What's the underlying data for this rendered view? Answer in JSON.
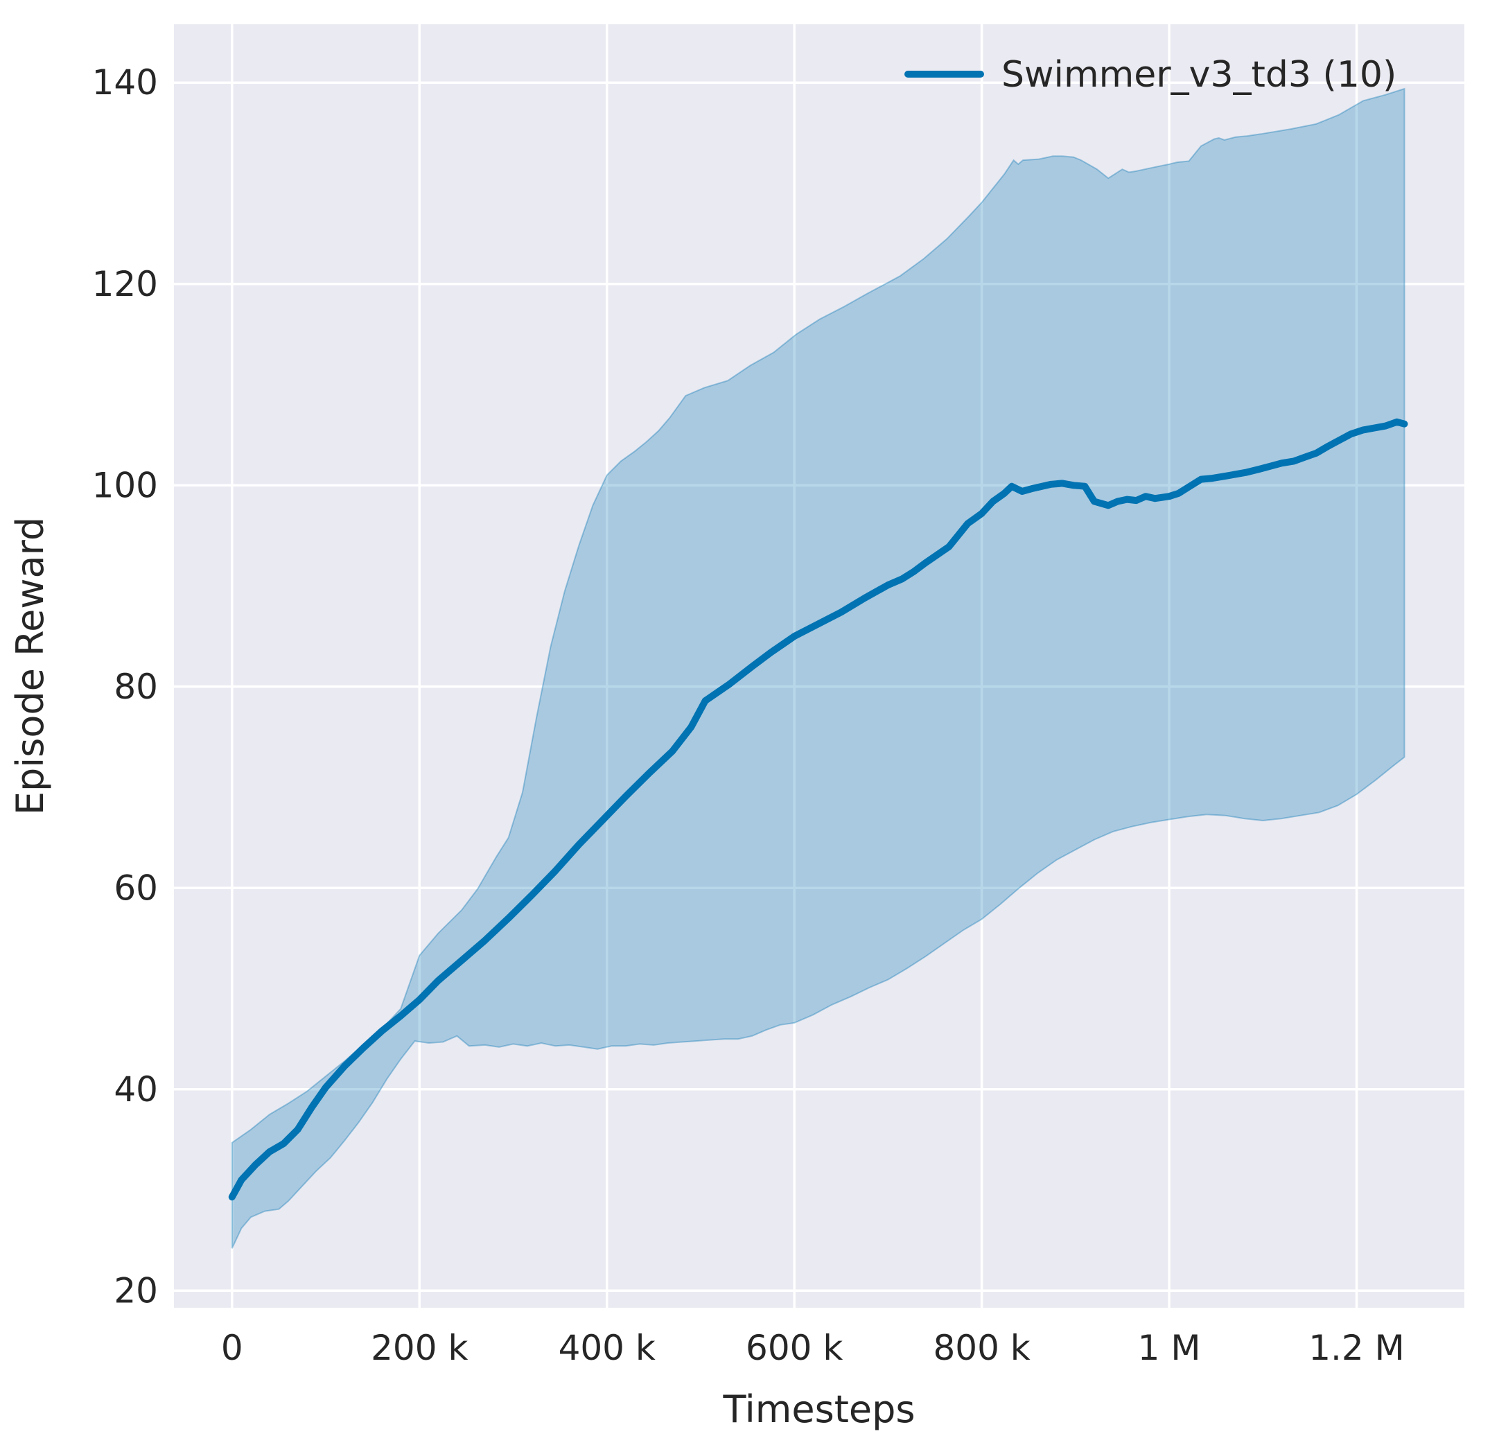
{
  "figure": {
    "background": "#ffffff",
    "plot_background": "#eaeaf2",
    "grid_color": "#ffffff",
    "text_color": "#262626"
  },
  "chart_data": {
    "type": "line",
    "title": "",
    "xlabel": "Timesteps",
    "ylabel": "Episode Reward",
    "grid": true,
    "legend": {
      "position": "upper right",
      "frame": false,
      "entries": [
        {
          "label": "Swimmer_v3_td3 (10)",
          "color": "#0173b2"
        }
      ]
    },
    "xlim": [
      -62000,
      1315000
    ],
    "ylim": [
      18.3,
      145.8
    ],
    "x_ticks": [
      {
        "value": 0,
        "label": "0"
      },
      {
        "value": 200000,
        "label": "200 k"
      },
      {
        "value": 400000,
        "label": "400 k"
      },
      {
        "value": 600000,
        "label": "600 k"
      },
      {
        "value": 800000,
        "label": "800 k"
      },
      {
        "value": 1000000,
        "label": "1 M"
      },
      {
        "value": 1200000,
        "label": "1.2 M"
      }
    ],
    "y_ticks": [
      {
        "value": 20,
        "label": "20"
      },
      {
        "value": 40,
        "label": "40"
      },
      {
        "value": 60,
        "label": "60"
      },
      {
        "value": 80,
        "label": "80"
      },
      {
        "value": 100,
        "label": "100"
      },
      {
        "value": 120,
        "label": "120"
      },
      {
        "value": 140,
        "label": "140"
      }
    ],
    "series": [
      {
        "name": "Swimmer_v3_td3 (10)",
        "color": "#0173b2",
        "line_width": 10,
        "points": [
          [
            0,
            29.3
          ],
          [
            10000,
            31.0
          ],
          [
            25000,
            32.5
          ],
          [
            40000,
            33.8
          ],
          [
            55000,
            34.6
          ],
          [
            70000,
            36.0
          ],
          [
            85000,
            38.2
          ],
          [
            100000,
            40.2
          ],
          [
            120000,
            42.3
          ],
          [
            140000,
            44.1
          ],
          [
            160000,
            45.8
          ],
          [
            180000,
            47.3
          ],
          [
            200000,
            48.9
          ],
          [
            220000,
            50.8
          ],
          [
            245000,
            52.8
          ],
          [
            270000,
            54.8
          ],
          [
            295000,
            57.0
          ],
          [
            320000,
            59.3
          ],
          [
            345000,
            61.7
          ],
          [
            370000,
            64.3
          ],
          [
            395000,
            66.7
          ],
          [
            420000,
            69.1
          ],
          [
            445000,
            71.4
          ],
          [
            470000,
            73.6
          ],
          [
            490000,
            76.0
          ],
          [
            505000,
            78.6
          ],
          [
            530000,
            80.2
          ],
          [
            555000,
            82.0
          ],
          [
            575000,
            83.4
          ],
          [
            600000,
            85.0
          ],
          [
            625000,
            86.2
          ],
          [
            650000,
            87.4
          ],
          [
            675000,
            88.8
          ],
          [
            700000,
            90.1
          ],
          [
            715000,
            90.7
          ],
          [
            727000,
            91.4
          ],
          [
            740000,
            92.3
          ],
          [
            765000,
            93.9
          ],
          [
            785000,
            96.2
          ],
          [
            800000,
            97.2
          ],
          [
            812000,
            98.4
          ],
          [
            824000,
            99.2
          ],
          [
            832000,
            99.9
          ],
          [
            843000,
            99.4
          ],
          [
            855000,
            99.7
          ],
          [
            874000,
            100.1
          ],
          [
            886000,
            100.2
          ],
          [
            898000,
            100.0
          ],
          [
            910000,
            99.9
          ],
          [
            920000,
            98.4
          ],
          [
            935000,
            98.0
          ],
          [
            945000,
            98.4
          ],
          [
            955000,
            98.6
          ],
          [
            965000,
            98.5
          ],
          [
            975000,
            98.9
          ],
          [
            985000,
            98.7
          ],
          [
            1000000,
            98.9
          ],
          [
            1010000,
            99.2
          ],
          [
            1022000,
            99.9
          ],
          [
            1034000,
            100.6
          ],
          [
            1046000,
            100.7
          ],
          [
            1059000,
            100.9
          ],
          [
            1071000,
            101.1
          ],
          [
            1083000,
            101.3
          ],
          [
            1096000,
            101.6
          ],
          [
            1108000,
            101.9
          ],
          [
            1120000,
            102.2
          ],
          [
            1133000,
            102.4
          ],
          [
            1145000,
            102.8
          ],
          [
            1157000,
            103.2
          ],
          [
            1170000,
            103.9
          ],
          [
            1182000,
            104.5
          ],
          [
            1194000,
            105.1
          ],
          [
            1207000,
            105.5
          ],
          [
            1219000,
            105.7
          ],
          [
            1231000,
            105.9
          ],
          [
            1243000,
            106.3
          ],
          [
            1251000,
            106.1
          ]
        ]
      }
    ],
    "bands": [
      {
        "name": "Swimmer_v3_td3 (10) deviation",
        "fill_color": "rgba(1,115,178,0.28)",
        "edge_color": "rgba(1,115,178,0.35)",
        "upper": [
          [
            0,
            34.7
          ],
          [
            20000,
            36.0
          ],
          [
            40000,
            37.5
          ],
          [
            60000,
            38.6
          ],
          [
            80000,
            39.8
          ],
          [
            100000,
            41.3
          ],
          [
            120000,
            42.8
          ],
          [
            140000,
            44.4
          ],
          [
            160000,
            46.0
          ],
          [
            180000,
            48.0
          ],
          [
            200000,
            53.3
          ],
          [
            220000,
            55.5
          ],
          [
            245000,
            57.8
          ],
          [
            262000,
            59.9
          ],
          [
            282000,
            63.1
          ],
          [
            295000,
            65.0
          ],
          [
            310000,
            69.5
          ],
          [
            325000,
            77.0
          ],
          [
            340000,
            84.0
          ],
          [
            355000,
            89.5
          ],
          [
            370000,
            94.0
          ],
          [
            385000,
            98.0
          ],
          [
            400000,
            101.0
          ],
          [
            415000,
            102.4
          ],
          [
            430000,
            103.4
          ],
          [
            442000,
            104.3
          ],
          [
            455000,
            105.4
          ],
          [
            467000,
            106.7
          ],
          [
            484000,
            108.9
          ],
          [
            504000,
            109.7
          ],
          [
            529000,
            110.4
          ],
          [
            553000,
            111.9
          ],
          [
            578000,
            113.2
          ],
          [
            602000,
            115.0
          ],
          [
            627000,
            116.5
          ],
          [
            652000,
            117.7
          ],
          [
            677000,
            119.0
          ],
          [
            713000,
            120.8
          ],
          [
            738000,
            122.5
          ],
          [
            763000,
            124.5
          ],
          [
            787000,
            126.8
          ],
          [
            800000,
            128.1
          ],
          [
            812000,
            129.5
          ],
          [
            824000,
            130.9
          ],
          [
            834000,
            132.3
          ],
          [
            839000,
            131.9
          ],
          [
            844000,
            132.3
          ],
          [
            861000,
            132.4
          ],
          [
            876000,
            132.7
          ],
          [
            886000,
            132.7
          ],
          [
            898000,
            132.6
          ],
          [
            906000,
            132.3
          ],
          [
            923000,
            131.4
          ],
          [
            935000,
            130.5
          ],
          [
            950000,
            131.4
          ],
          [
            957000,
            131.1
          ],
          [
            964000,
            131.2
          ],
          [
            974000,
            131.4
          ],
          [
            984000,
            131.6
          ],
          [
            1000000,
            131.9
          ],
          [
            1009000,
            132.1
          ],
          [
            1021000,
            132.2
          ],
          [
            1034000,
            133.7
          ],
          [
            1048000,
            134.4
          ],
          [
            1053000,
            134.5
          ],
          [
            1059000,
            134.3
          ],
          [
            1071000,
            134.6
          ],
          [
            1083000,
            134.7
          ],
          [
            1098000,
            134.9
          ],
          [
            1130000,
            135.4
          ],
          [
            1157000,
            135.9
          ],
          [
            1181000,
            136.8
          ],
          [
            1207000,
            138.2
          ],
          [
            1231000,
            138.8
          ],
          [
            1251000,
            139.4
          ]
        ],
        "lower": [
          [
            0,
            24.2
          ],
          [
            10000,
            26.2
          ],
          [
            20000,
            27.3
          ],
          [
            35000,
            27.9
          ],
          [
            50000,
            28.1
          ],
          [
            60000,
            28.9
          ],
          [
            75000,
            30.4
          ],
          [
            90000,
            31.9
          ],
          [
            105000,
            33.2
          ],
          [
            120000,
            34.9
          ],
          [
            135000,
            36.7
          ],
          [
            150000,
            38.7
          ],
          [
            165000,
            41.0
          ],
          [
            180000,
            43.0
          ],
          [
            195000,
            44.8
          ],
          [
            210000,
            44.6
          ],
          [
            225000,
            44.7
          ],
          [
            240000,
            45.3
          ],
          [
            253000,
            44.3
          ],
          [
            270000,
            44.4
          ],
          [
            285000,
            44.2
          ],
          [
            300000,
            44.5
          ],
          [
            315000,
            44.3
          ],
          [
            330000,
            44.6
          ],
          [
            345000,
            44.3
          ],
          [
            360000,
            44.4
          ],
          [
            375000,
            44.2
          ],
          [
            390000,
            44.0
          ],
          [
            405000,
            44.3
          ],
          [
            420000,
            44.3
          ],
          [
            435000,
            44.5
          ],
          [
            450000,
            44.4
          ],
          [
            465000,
            44.6
          ],
          [
            480000,
            44.7
          ],
          [
            495000,
            44.8
          ],
          [
            510000,
            44.9
          ],
          [
            525000,
            45.0
          ],
          [
            540000,
            45.0
          ],
          [
            555000,
            45.3
          ],
          [
            570000,
            45.9
          ],
          [
            585000,
            46.4
          ],
          [
            600000,
            46.6
          ],
          [
            620000,
            47.4
          ],
          [
            640000,
            48.4
          ],
          [
            660000,
            49.2
          ],
          [
            680000,
            50.1
          ],
          [
            700000,
            50.9
          ],
          [
            720000,
            52.0
          ],
          [
            740000,
            53.2
          ],
          [
            760000,
            54.5
          ],
          [
            780000,
            55.8
          ],
          [
            800000,
            56.9
          ],
          [
            820000,
            58.4
          ],
          [
            840000,
            60.0
          ],
          [
            860000,
            61.5
          ],
          [
            880000,
            62.8
          ],
          [
            900000,
            63.8
          ],
          [
            920000,
            64.8
          ],
          [
            940000,
            65.6
          ],
          [
            960000,
            66.1
          ],
          [
            980000,
            66.5
          ],
          [
            1000000,
            66.8
          ],
          [
            1020000,
            67.1
          ],
          [
            1040000,
            67.3
          ],
          [
            1060000,
            67.2
          ],
          [
            1080000,
            66.9
          ],
          [
            1100000,
            66.7
          ],
          [
            1120000,
            66.9
          ],
          [
            1140000,
            67.2
          ],
          [
            1160000,
            67.5
          ],
          [
            1180000,
            68.2
          ],
          [
            1200000,
            69.3
          ],
          [
            1220000,
            70.7
          ],
          [
            1240000,
            72.2
          ],
          [
            1251000,
            73.0
          ]
        ]
      }
    ]
  }
}
